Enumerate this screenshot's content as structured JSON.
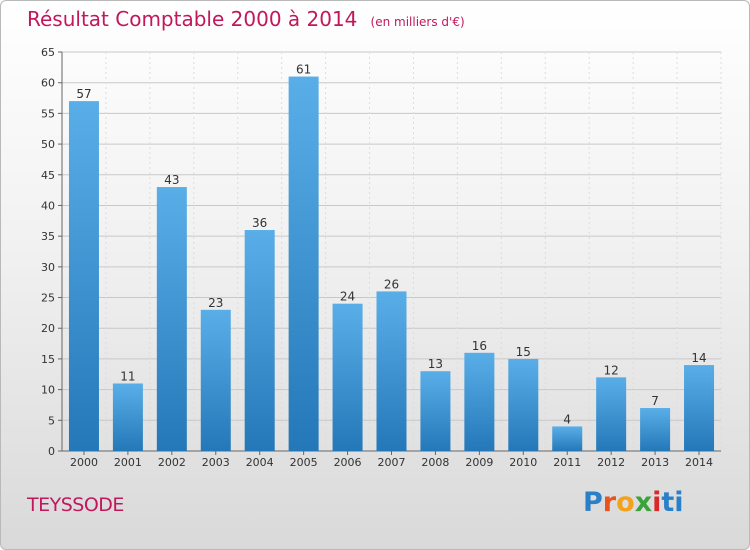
{
  "header": {
    "title": "Résultat Comptable 2000 à 2014",
    "subtitle": "(en milliers d'€)"
  },
  "footer": {
    "commune": "TEYSSODE",
    "logo_text": "Proxiti"
  },
  "colors": {
    "title": "#c2185b",
    "bar_top": "#5aaee8",
    "bar_bottom": "#2478b8"
  },
  "chart_data": {
    "type": "bar",
    "title": "Résultat Comptable 2000 à 2014",
    "subtitle": "(en milliers d'€)",
    "categories": [
      "2000",
      "2001",
      "2002",
      "2003",
      "2004",
      "2005",
      "2006",
      "2007",
      "2008",
      "2009",
      "2010",
      "2011",
      "2012",
      "2013",
      "2014"
    ],
    "values": [
      57,
      11,
      43,
      23,
      36,
      61,
      24,
      26,
      13,
      16,
      15,
      4,
      12,
      7,
      14
    ],
    "ylim": [
      0,
      65
    ],
    "yticks": [
      0,
      5,
      10,
      15,
      20,
      25,
      30,
      35,
      40,
      45,
      50,
      55,
      60,
      65
    ],
    "grid": true,
    "data_labels": true
  }
}
